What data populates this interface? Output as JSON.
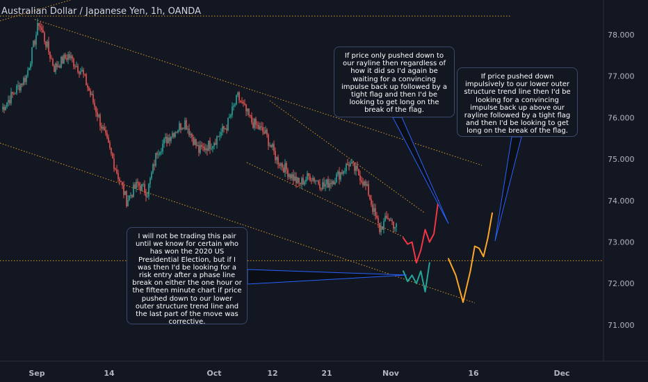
{
  "chart_data": {
    "type": "candlestick",
    "title": "Australian Dollar / Japanese Yen, 1h, OANDA",
    "y_ticks": [
      "78.000",
      "77.000",
      "76.000",
      "75.000",
      "74.000",
      "73.000",
      "72.000",
      "71.000"
    ],
    "x_ticks": [
      "Sep",
      "14",
      "Oct",
      "12",
      "21",
      "Nov",
      "16",
      "Dec"
    ],
    "ylim": [
      70.5,
      78.5
    ],
    "horizontal_levels": [
      78.45,
      72.55
    ],
    "colors": {
      "up": "#26a69a",
      "down": "#ef5350",
      "trend": "#e09a2a",
      "path_red": "#f23645",
      "path_green": "#26a69a",
      "path_orange": "#ffa726",
      "pointer": "#2962ff"
    },
    "anchors": [
      {
        "i": 0,
        "p": 76.2
      },
      {
        "i": 18,
        "p": 77.0
      },
      {
        "i": 27,
        "p": 78.3
      },
      {
        "i": 38,
        "p": 77.2
      },
      {
        "i": 48,
        "p": 77.5
      },
      {
        "i": 58,
        "p": 77.1
      },
      {
        "i": 68,
        "p": 76.2
      },
      {
        "i": 80,
        "p": 75.0
      },
      {
        "i": 90,
        "p": 74.0
      },
      {
        "i": 98,
        "p": 74.4
      },
      {
        "i": 105,
        "p": 74.2
      },
      {
        "i": 112,
        "p": 75.2
      },
      {
        "i": 122,
        "p": 75.6
      },
      {
        "i": 132,
        "p": 75.9
      },
      {
        "i": 142,
        "p": 75.2
      },
      {
        "i": 152,
        "p": 75.4
      },
      {
        "i": 162,
        "p": 75.8
      },
      {
        "i": 170,
        "p": 76.5
      },
      {
        "i": 180,
        "p": 75.9
      },
      {
        "i": 190,
        "p": 75.6
      },
      {
        "i": 198,
        "p": 75.0
      },
      {
        "i": 206,
        "p": 74.7
      },
      {
        "i": 214,
        "p": 74.4
      },
      {
        "i": 222,
        "p": 74.6
      },
      {
        "i": 232,
        "p": 74.35
      },
      {
        "i": 242,
        "p": 74.6
      },
      {
        "i": 250,
        "p": 74.9
      },
      {
        "i": 258,
        "p": 74.6
      },
      {
        "i": 264,
        "p": 74.2
      },
      {
        "i": 268,
        "p": 73.7
      },
      {
        "i": 272,
        "p": 73.3
      },
      {
        "i": 278,
        "p": 73.6
      },
      {
        "i": 284,
        "p": 73.35
      }
    ],
    "paths": {
      "red": [
        [
          0,
          73.1
        ],
        [
          3,
          72.95
        ],
        [
          6,
          73.0
        ],
        [
          9,
          72.5
        ],
        [
          12,
          72.8
        ],
        [
          15,
          73.3
        ],
        [
          18,
          73.0
        ],
        [
          21,
          73.2
        ],
        [
          24,
          74.0
        ]
      ],
      "green": [
        [
          0,
          72.3
        ],
        [
          3,
          72.05
        ],
        [
          6,
          72.2
        ],
        [
          9,
          72.0
        ],
        [
          12,
          72.3
        ],
        [
          15,
          71.8
        ],
        [
          18,
          72.5
        ]
      ],
      "orange": [
        [
          0,
          72.6
        ],
        [
          5,
          72.2
        ],
        [
          10,
          71.55
        ],
        [
          15,
          72.3
        ],
        [
          18,
          72.9
        ],
        [
          21,
          72.85
        ],
        [
          24,
          72.65
        ],
        [
          27,
          73.1
        ],
        [
          30,
          73.7
        ]
      ]
    }
  },
  "notes": [
    {
      "text": "I will not be trading this pair until we know for certain who has won the 2020 US Presidential Election, but if I was then I'd be looking for a risk entry after a phase line break on either the one hour or the fifteen minute chart if price pushed down to our lower outer structure trend line and the last part of the move was corrective."
    },
    {
      "text": "If price only pushed down to our rayline then regardless of how it did so I'd again be waiting for a convincing impulse back up followed by a tight flag and then I'd be looking to get long on the break of the flag."
    },
    {
      "text": "If price pushed down impulsively to our lower outer structure trend line then I'd be looking for a convincing impulse back up above our rayline followed by a tight flag and then I'd be looking to get long on the break of the flag."
    }
  ]
}
